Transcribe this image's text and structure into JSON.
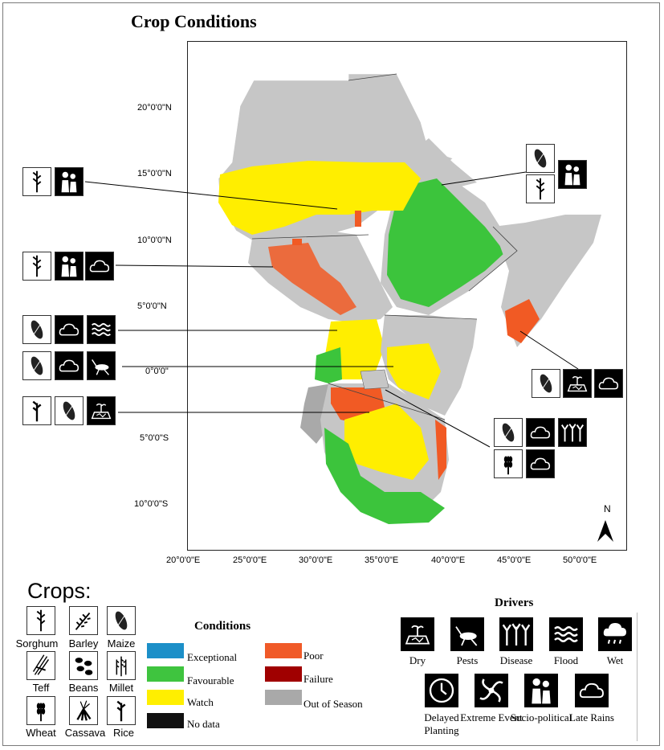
{
  "title": "Crop Conditions",
  "lat_labels": [
    "20°0'0\"N",
    "15°0'0\"N",
    "10°0'0\"N",
    "5°0'0\"N",
    "0°0'0\"",
    "5°0'0\"S",
    "10°0'0\"S"
  ],
  "lon_labels": [
    "20°0'0\"E",
    "25°0'0\"E",
    "30°0'0\"E",
    "35°0'0\"E",
    "40°0'0\"E",
    "45°0'0\"E",
    "50°0'0\"E"
  ],
  "north_label": "N",
  "crops": {
    "title": "Crops:",
    "items": [
      "Sorghum",
      "Barley",
      "Maize",
      "Teff",
      "Beans",
      "Millet",
      "Wheat",
      "Cassava",
      "Rice"
    ]
  },
  "conditions": {
    "title": "Conditions",
    "items": [
      {
        "label": "Exceptional",
        "color": "#1c8fc8"
      },
      {
        "label": "Favourable",
        "color": "#3fc43f"
      },
      {
        "label": "Watch",
        "color": "#ffef00"
      },
      {
        "label": "No data",
        "color": "#111111"
      },
      {
        "label": "Poor",
        "color": "#f05a28"
      },
      {
        "label": "Failure",
        "color": "#a00000"
      },
      {
        "label": "Out of Season",
        "color": "#a9a9a9"
      }
    ]
  },
  "drivers": {
    "title": "Drivers",
    "items": [
      "Dry",
      "Pests",
      "Disease",
      "Flood",
      "Wet",
      "Delayed Planting",
      "Extreme Event",
      "Socio-political",
      "Late Rains"
    ]
  },
  "colors": {
    "out_of_season": "#c6c6c6",
    "watch": "#ffee00",
    "favourable": "#3cc43c",
    "poor": "#f15a24",
    "failure": "#c00000",
    "cloud_grey": "#9a9a9a"
  }
}
